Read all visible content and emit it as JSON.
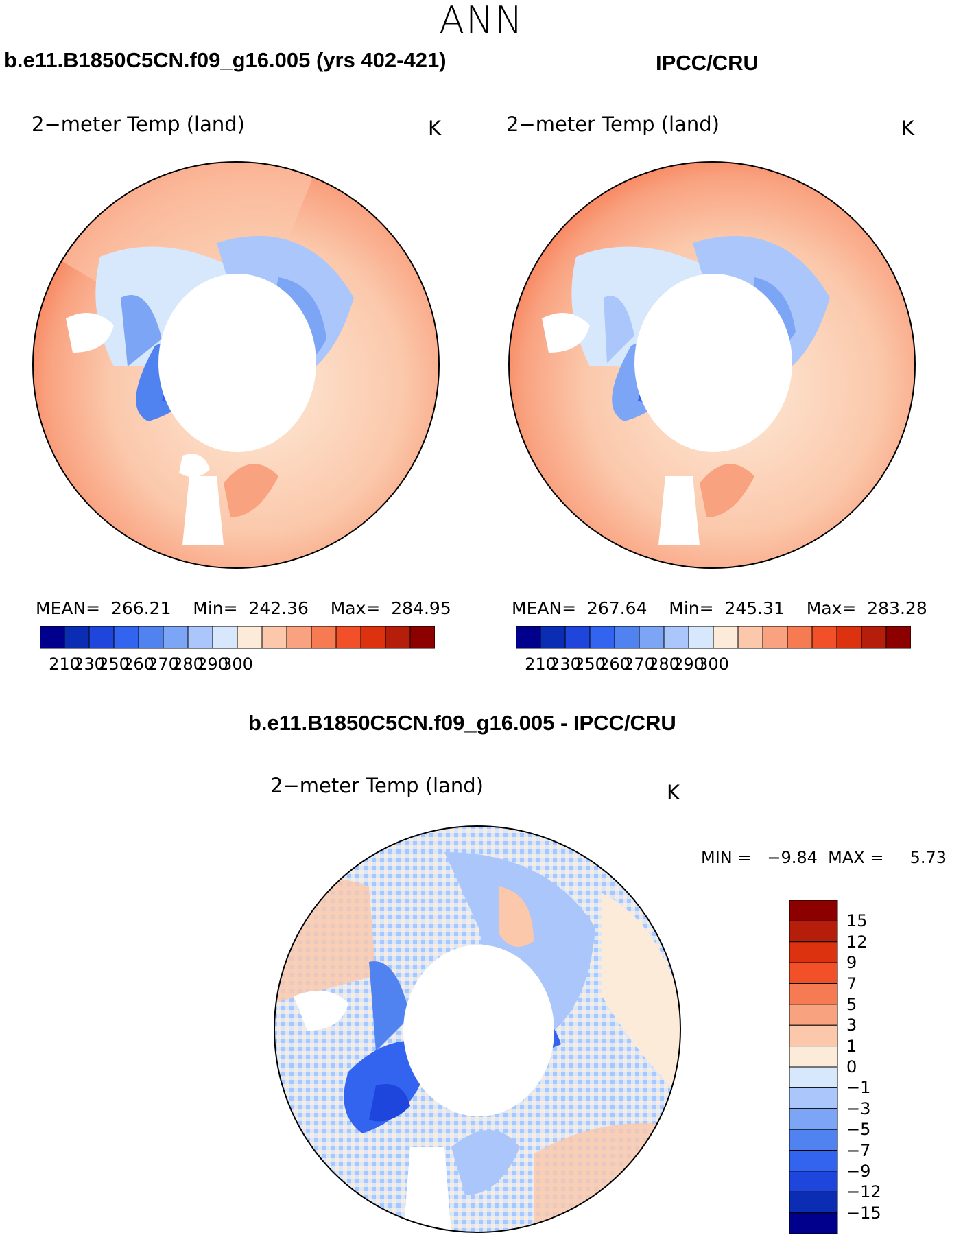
{
  "title": "ANN",
  "panels": [
    {
      "header": "b.e11.B1850C5CN.f09_g16.005 (yrs 402-421)",
      "plot_label": "2−meter Temp (land)",
      "unit": "K",
      "stats": "MEAN=  266.21    Min=  242.36    Max=  284.95"
    },
    {
      "header": "IPCC/CRU",
      "plot_label": "2−meter Temp (land)",
      "unit": "K",
      "stats": "MEAN=  267.64    Min=  245.31    Max=  283.28"
    }
  ],
  "abs_colorbar": {
    "ticks": [
      "210",
      "230",
      "250",
      "260",
      "270",
      "280",
      "290",
      "300"
    ],
    "colors": [
      "#00008c",
      "#0a2db4",
      "#1e46dc",
      "#3264f0",
      "#5082f0",
      "#7ca5f5",
      "#aac6fa",
      "#d7e8fc",
      "#fdebd9",
      "#fbc8ab",
      "#f9a280",
      "#f77b52",
      "#f25028",
      "#dc3210",
      "#b41e0a",
      "#8c0000"
    ]
  },
  "diff": {
    "header": "b.e11.B1850C5CN.f09_g16.005 - IPCC/CRU",
    "plot_label": "2−meter Temp (land)",
    "unit": "K",
    "minmax": "MIN =   −9.84  MAX =     5.73"
  },
  "diff_colorbar": {
    "ticks": [
      "15",
      "12",
      "9",
      "7",
      "5",
      "3",
      "1",
      "0",
      "−1",
      "−3",
      "−5",
      "−7",
      "−9",
      "−12",
      "−15"
    ],
    "colors": [
      "#8c0000",
      "#b41e0a",
      "#dc3210",
      "#f25028",
      "#f77b52",
      "#f9a280",
      "#fbc8ab",
      "#fdebd9",
      "#d7e8fc",
      "#aac6fa",
      "#7ca5f5",
      "#5082f0",
      "#3264f0",
      "#1e46dc",
      "#0a2db4",
      "#00008c"
    ]
  }
}
